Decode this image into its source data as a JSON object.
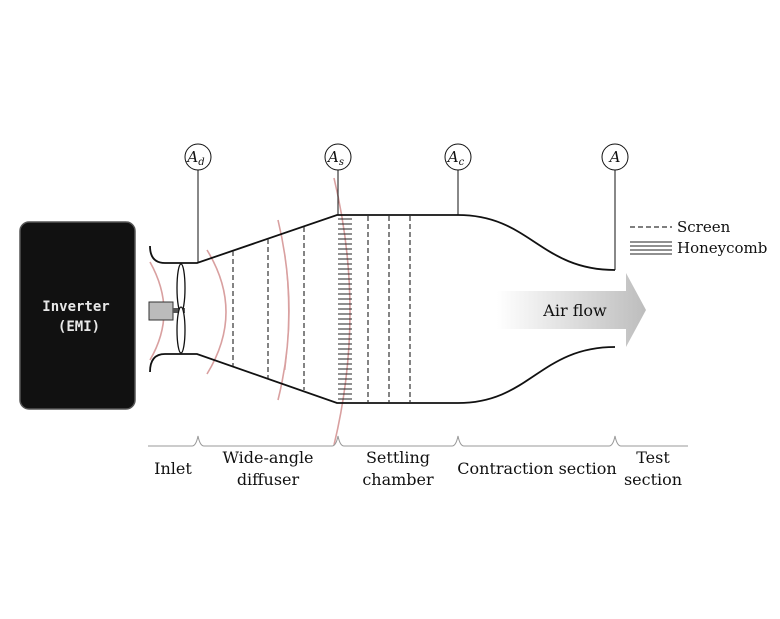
{
  "inverter": {
    "line1": "Inverter",
    "line2": "(EMI)",
    "fill": "#111111",
    "text_color": "#e8e8e8"
  },
  "area_labels": [
    {
      "base": "A",
      "sub": "d"
    },
    {
      "base": "A",
      "sub": "s"
    },
    {
      "base": "A",
      "sub": "c"
    },
    {
      "base": "A",
      "sub": ""
    }
  ],
  "legend": {
    "screen": "Screen",
    "honeycomb": "Honeycomb"
  },
  "air_flow": "Air flow",
  "sections": {
    "inlet": "Inlet",
    "diffuser_1": "Wide-angle",
    "diffuser_2": "diffuser",
    "settling_1": "Settling",
    "settling_2": "chamber",
    "contraction": "Contraction section",
    "test_1": "Test",
    "test_2": "section"
  },
  "colors": {
    "emi_wave": "#d9a0a0",
    "outline": "#111111",
    "screen": "#333333"
  }
}
